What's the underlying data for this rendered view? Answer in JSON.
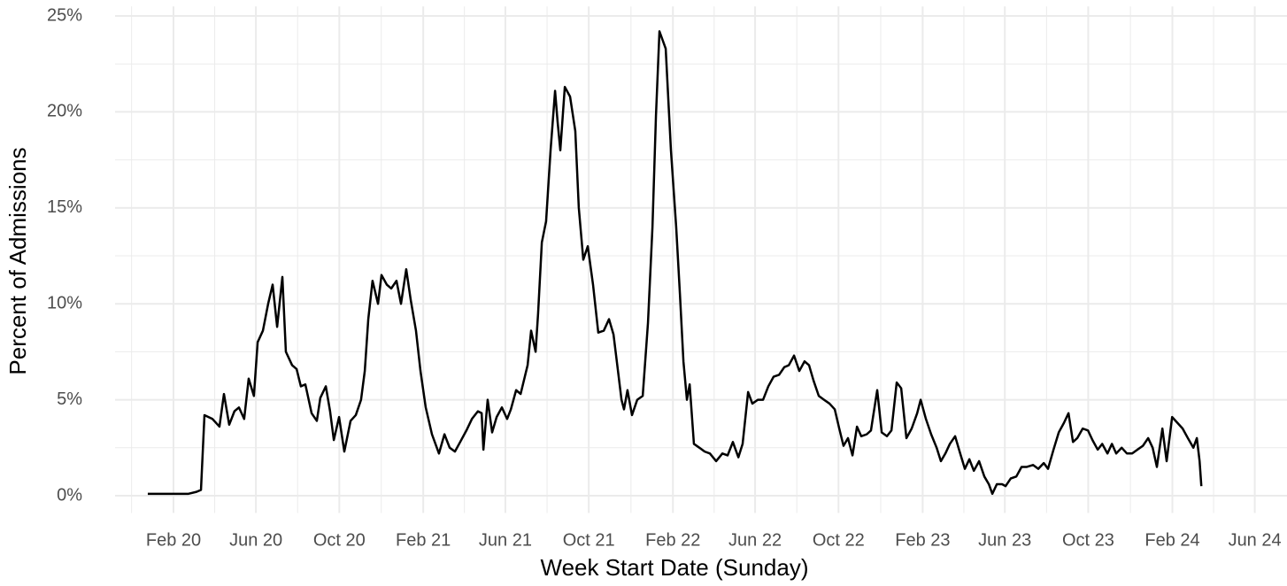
{
  "chart_data": {
    "type": "line",
    "x_label": "Week Start Date (Sunday)",
    "y_label": "Percent of Admissions",
    "color": "#000000",
    "grid": true,
    "xlim": [
      2019.851,
      2024.544
    ],
    "ylim": [
      -0.9,
      25.5
    ],
    "xticks": [
      {
        "value": 2020.085,
        "label": "Feb 20"
      },
      {
        "value": 2020.415,
        "label": "Jun 20"
      },
      {
        "value": 2020.749,
        "label": "Oct 20"
      },
      {
        "value": 2021.085,
        "label": "Feb 21"
      },
      {
        "value": 2021.414,
        "label": "Jun 21"
      },
      {
        "value": 2021.748,
        "label": "Oct 21"
      },
      {
        "value": 2022.085,
        "label": "Feb 22"
      },
      {
        "value": 2022.414,
        "label": "Jun 22"
      },
      {
        "value": 2022.748,
        "label": "Oct 22"
      },
      {
        "value": 2023.085,
        "label": "Feb 23"
      },
      {
        "value": 2023.414,
        "label": "Jun 23"
      },
      {
        "value": 2023.748,
        "label": "Oct 23"
      },
      {
        "value": 2024.085,
        "label": "Feb 24"
      },
      {
        "value": 2024.415,
        "label": "Jun 24"
      }
    ],
    "xminorticks": [
      2019.917,
      2020.25,
      2020.582,
      2020.917,
      2021.25,
      2021.581,
      2021.917,
      2022.25,
      2022.581,
      2022.917,
      2023.25,
      2023.581,
      2023.917,
      2024.25
    ],
    "yticks": [
      {
        "value": 0,
        "label": "0%"
      },
      {
        "value": 5,
        "label": "5%"
      },
      {
        "value": 10,
        "label": "10%"
      },
      {
        "value": 15,
        "label": "15%"
      },
      {
        "value": 20,
        "label": "20%"
      },
      {
        "value": 25,
        "label": "25%"
      }
    ],
    "yminorticks": [
      2.5,
      7.5,
      12.5,
      17.5,
      22.5
    ],
    "x": [
      2019.982,
      2020.064,
      2020.145,
      2020.177,
      2020.195,
      2020.209,
      2020.241,
      2020.269,
      2020.287,
      2020.308,
      2020.329,
      2020.347,
      2020.368,
      2020.386,
      2020.407,
      2020.422,
      2020.443,
      2020.464,
      2020.482,
      2020.5,
      2020.521,
      2020.535,
      2020.56,
      2020.578,
      2020.595,
      2020.613,
      2020.638,
      2020.659,
      2020.673,
      2020.695,
      2020.712,
      2020.727,
      2020.748,
      2020.769,
      2020.794,
      2020.815,
      2020.836,
      2020.851,
      2020.865,
      2020.882,
      2020.904,
      2020.918,
      2020.939,
      2020.957,
      2020.978,
      2020.996,
      2021.017,
      2021.035,
      2021.056,
      2021.074,
      2021.095,
      2021.12,
      2021.148,
      2021.17,
      2021.191,
      2021.212,
      2021.233,
      2021.258,
      2021.28,
      2021.304,
      2021.319,
      2021.326,
      2021.343,
      2021.361,
      2021.379,
      2021.4,
      2021.421,
      2021.436,
      2021.457,
      2021.475,
      2021.503,
      2021.517,
      2021.535,
      2021.545,
      2021.56,
      2021.577,
      2021.595,
      2021.613,
      2021.623,
      2021.634,
      2021.652,
      2021.673,
      2021.694,
      2021.708,
      2021.726,
      2021.744,
      2021.765,
      2021.786,
      2021.808,
      2021.829,
      2021.847,
      2021.864,
      2021.879,
      2021.889,
      2021.903,
      2021.921,
      2021.942,
      2021.964,
      2021.985,
      2022.003,
      2022.017,
      2022.031,
      2022.056,
      2022.077,
      2022.098,
      2022.113,
      2022.127,
      2022.141,
      2022.152,
      2022.169,
      2022.191,
      2022.212,
      2022.233,
      2022.258,
      2022.283,
      2022.304,
      2022.325,
      2022.347,
      2022.364,
      2022.386,
      2022.403,
      2022.425,
      2022.446,
      2022.467,
      2022.488,
      2022.51,
      2022.531,
      2022.549,
      2022.57,
      2022.591,
      2022.612,
      2022.63,
      2022.648,
      2022.669,
      2022.69,
      2022.712,
      2022.733,
      2022.751,
      2022.768,
      2022.786,
      2022.804,
      2022.822,
      2022.839,
      2022.861,
      2022.878,
      2022.885,
      2022.903,
      2022.921,
      2022.942,
      2022.96,
      2022.981,
      2022.999,
      2023.02,
      2023.041,
      2023.063,
      2023.077,
      2023.098,
      2023.119,
      2023.141,
      2023.158,
      2023.176,
      2023.194,
      2023.215,
      2023.233,
      2023.254,
      2023.272,
      2023.29,
      2023.311,
      2023.332,
      2023.35,
      2023.364,
      2023.382,
      2023.403,
      2023.417,
      2023.438,
      2023.46,
      2023.481,
      2023.502,
      2023.527,
      2023.548,
      2023.57,
      2023.587,
      2023.609,
      2023.63,
      2023.651,
      2023.669,
      2023.687,
      2023.704,
      2023.726,
      2023.747,
      2023.765,
      2023.786,
      2023.804,
      2023.825,
      2023.843,
      2023.86,
      2023.882,
      2023.903,
      2023.924,
      2023.945,
      2023.967,
      2023.988,
      2024.006,
      2024.023,
      2024.045,
      2024.062,
      2024.084,
      2024.105,
      2024.126,
      2024.147,
      2024.169,
      2024.183,
      2024.194,
      2024.201
    ],
    "values": [
      0.1,
      0.1,
      0.1,
      0.2,
      0.3,
      4.2,
      4.0,
      3.6,
      5.3,
      3.7,
      4.4,
      4.6,
      4.0,
      6.1,
      5.2,
      8.0,
      8.6,
      10.0,
      11.0,
      8.8,
      11.4,
      7.5,
      6.8,
      6.6,
      5.7,
      5.8,
      4.3,
      3.9,
      5.1,
      5.7,
      4.4,
      2.9,
      4.1,
      2.3,
      3.9,
      4.2,
      5.0,
      6.5,
      9.2,
      11.2,
      10.0,
      11.5,
      11.0,
      10.8,
      11.2,
      10.0,
      11.8,
      10.2,
      8.6,
      6.5,
      4.6,
      3.2,
      2.2,
      3.2,
      2.5,
      2.3,
      2.8,
      3.4,
      4.0,
      4.4,
      4.3,
      2.4,
      5.0,
      3.3,
      4.1,
      4.6,
      4.0,
      4.5,
      5.5,
      5.3,
      6.8,
      8.6,
      7.5,
      9.5,
      13.2,
      14.3,
      18.0,
      21.1,
      19.5,
      18.0,
      21.3,
      20.8,
      19.0,
      15.0,
      12.3,
      13.0,
      11.0,
      8.5,
      8.6,
      9.2,
      8.4,
      6.6,
      5.0,
      4.5,
      5.5,
      4.2,
      5.0,
      5.2,
      9.0,
      14.0,
      19.8,
      24.2,
      23.3,
      18.0,
      14.0,
      10.5,
      7.0,
      5.0,
      5.8,
      2.7,
      2.5,
      2.3,
      2.2,
      1.8,
      2.2,
      2.1,
      2.8,
      2.0,
      2.7,
      5.4,
      4.8,
      5.0,
      5.0,
      5.7,
      6.2,
      6.3,
      6.7,
      6.8,
      7.3,
      6.5,
      7.0,
      6.8,
      6.0,
      5.2,
      5.0,
      4.8,
      4.5,
      3.5,
      2.6,
      3.0,
      2.1,
      3.6,
      3.1,
      3.2,
      3.4,
      4.0,
      5.5,
      3.3,
      3.1,
      3.4,
      5.9,
      5.6,
      3.0,
      3.5,
      4.3,
      5.0,
      4.0,
      3.2,
      2.5,
      1.8,
      2.2,
      2.7,
      3.1,
      2.3,
      1.4,
      1.9,
      1.3,
      1.8,
      1.0,
      0.6,
      0.1,
      0.6,
      0.6,
      0.5,
      0.9,
      1.0,
      1.5,
      1.5,
      1.6,
      1.4,
      1.7,
      1.4,
      2.4,
      3.3,
      3.8,
      4.3,
      2.8,
      3.0,
      3.5,
      3.4,
      2.9,
      2.4,
      2.7,
      2.2,
      2.7,
      2.2,
      2.5,
      2.2,
      2.2,
      2.4,
      2.6,
      3.0,
      2.5,
      1.5,
      3.5,
      1.8,
      4.1,
      3.8,
      3.5,
      3.0,
      2.5,
      3.0,
      1.8,
      0.5
    ]
  }
}
